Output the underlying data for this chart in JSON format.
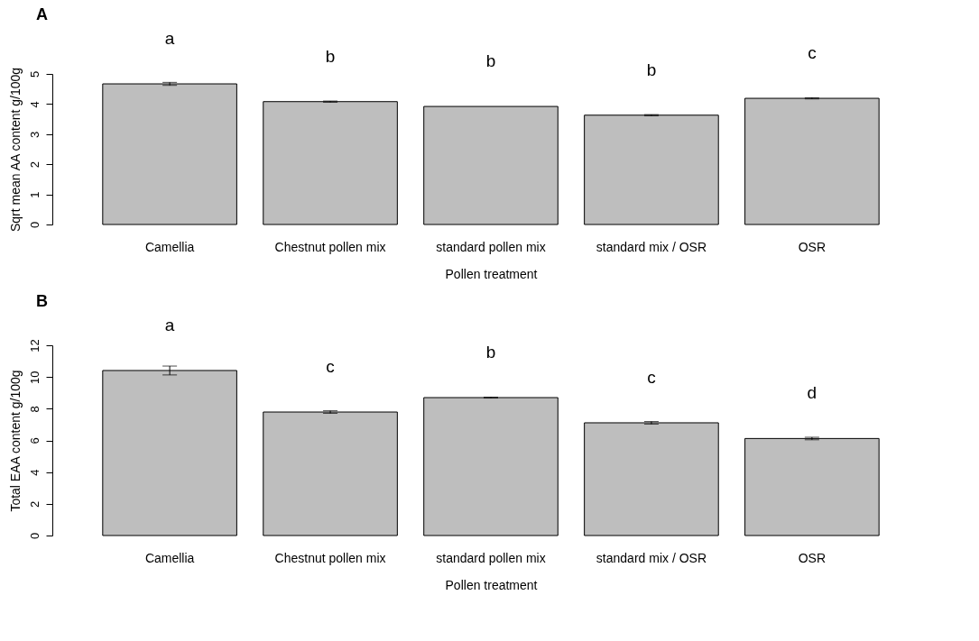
{
  "chart_data": [
    {
      "type": "bar",
      "title": "A",
      "xlabel": "Pollen treatment",
      "ylabel": "Sqrt mean AA content g/100g",
      "categories": [
        "Camellia",
        "Chestnut pollen mix",
        "standard pollen mix",
        "standard mix / OSR",
        "OSR"
      ],
      "values": [
        4.67,
        4.08,
        3.92,
        3.63,
        4.19
      ],
      "errors": [
        0.05,
        0.02,
        null,
        0.02,
        0.02
      ],
      "color": "#bebebe",
      "ylim": [
        0,
        5
      ],
      "yticks": [
        0,
        1,
        2,
        3,
        4,
        5
      ],
      "annotations": [
        "a",
        "b",
        "b",
        "b",
        "c"
      ]
    },
    {
      "type": "bar",
      "title": "B",
      "xlabel": "Pollen treatment",
      "ylabel": "Total EAA content g/100g",
      "categories": [
        "Camellia",
        "Chestnut pollen mix",
        "standard pollen mix",
        "standard mix / OSR",
        "OSR"
      ],
      "values": [
        10.41,
        7.79,
        8.7,
        7.11,
        6.12
      ],
      "errors": [
        0.28,
        0.08,
        0.03,
        0.08,
        0.08
      ],
      "color": "#bebebe",
      "ylim": [
        0,
        12
      ],
      "yticks": [
        0,
        2,
        4,
        6,
        8,
        10,
        12
      ],
      "annotations": [
        "a",
        "c",
        "b",
        "c",
        "d"
      ]
    }
  ]
}
